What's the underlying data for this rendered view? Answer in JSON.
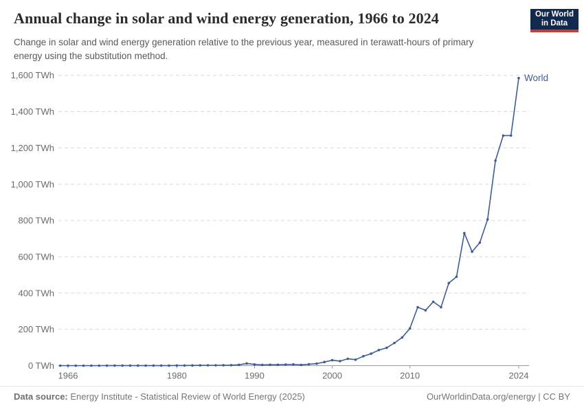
{
  "header": {
    "title": "Annual change in solar and wind energy generation, 1966 to 2024",
    "subtitle": "Change in solar and wind energy generation relative to the previous year, measured in terawatt-hours of primary energy using the substitution method.",
    "logo": {
      "line1": "Our World",
      "line2": "in Data",
      "bg_color": "#12294e",
      "stripe_color": "#d0392e"
    }
  },
  "chart_data": {
    "type": "line",
    "title": "Annual change in solar and wind energy generation, 1966 to 2024",
    "unit": "TWh",
    "xlim": [
      1965,
      2024
    ],
    "ylim": [
      0,
      1600
    ],
    "x_ticks": [
      1966,
      1980,
      1990,
      2000,
      2010,
      2024
    ],
    "y_ticks": [
      0,
      200,
      400,
      600,
      800,
      1000,
      1200,
      1400,
      1600
    ],
    "y_tick_suffix": " TWh",
    "grid": "horizontal-dashed",
    "legend_position": "end-of-line-label",
    "series": [
      {
        "name": "World",
        "color": "#3d5c96",
        "points": [
          [
            1965,
            0
          ],
          [
            1966,
            0.1
          ],
          [
            1967,
            0.1
          ],
          [
            1968,
            0.1
          ],
          [
            1969,
            0.1
          ],
          [
            1970,
            0.1
          ],
          [
            1971,
            0.2
          ],
          [
            1972,
            0.2
          ],
          [
            1973,
            0.2
          ],
          [
            1974,
            0.2
          ],
          [
            1975,
            0.3
          ],
          [
            1976,
            0.3
          ],
          [
            1977,
            0.4
          ],
          [
            1978,
            0.4
          ],
          [
            1979,
            0.5
          ],
          [
            1980,
            0.6
          ],
          [
            1981,
            0.8
          ],
          [
            1982,
            1
          ],
          [
            1983,
            1.4
          ],
          [
            1984,
            1.8
          ],
          [
            1985,
            2
          ],
          [
            1986,
            2.2
          ],
          [
            1987,
            2.5
          ],
          [
            1988,
            4.5
          ],
          [
            1989,
            12
          ],
          [
            1990,
            7
          ],
          [
            1991,
            4
          ],
          [
            1992,
            5
          ],
          [
            1993,
            5
          ],
          [
            1994,
            6
          ],
          [
            1995,
            7
          ],
          [
            1996,
            4
          ],
          [
            1997,
            8
          ],
          [
            1998,
            11
          ],
          [
            1999,
            20
          ],
          [
            2000,
            30
          ],
          [
            2001,
            25
          ],
          [
            2002,
            38
          ],
          [
            2003,
            33
          ],
          [
            2004,
            52
          ],
          [
            2005,
            66
          ],
          [
            2006,
            86
          ],
          [
            2007,
            98
          ],
          [
            2008,
            125
          ],
          [
            2009,
            155
          ],
          [
            2010,
            205
          ],
          [
            2011,
            322
          ],
          [
            2012,
            305
          ],
          [
            2013,
            352
          ],
          [
            2014,
            322
          ],
          [
            2015,
            455
          ],
          [
            2016,
            490
          ],
          [
            2017,
            730
          ],
          [
            2018,
            628
          ],
          [
            2019,
            678
          ],
          [
            2020,
            806
          ],
          [
            2021,
            1130
          ],
          [
            2022,
            1268
          ],
          [
            2023,
            1268
          ],
          [
            2024,
            1585
          ]
        ]
      }
    ]
  },
  "footer": {
    "source_label": "Data source:",
    "source_text": " Energy Institute - Statistical Review of World Energy (2025)",
    "right_text": "OurWorldinData.org/energy | CC BY"
  }
}
